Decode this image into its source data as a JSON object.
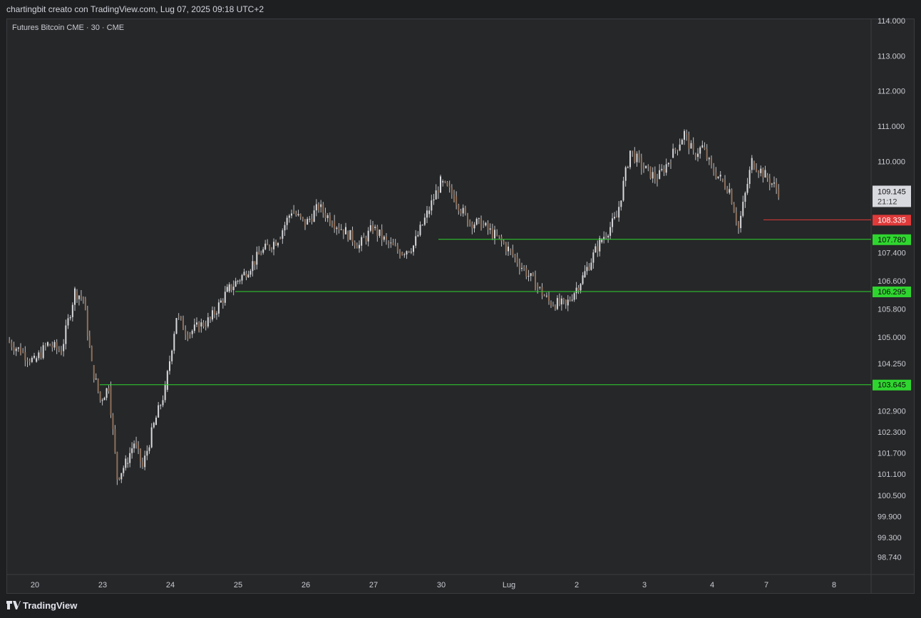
{
  "header": {
    "attribution": "chartingbit creato con TradingView.com, Lug 07, 2025 09:18 UTC+2"
  },
  "symbol": "Futures Bitcoin CME · 30 · CME",
  "footer": {
    "brand": "TradingView",
    "logo_icon": "tradingview-logo-icon"
  },
  "colors": {
    "background": "#262728",
    "candle": "#bfc1c6",
    "support_line": "#2fd52f",
    "resistance_line": "#e03a3a",
    "last_price_tag": "#d9dadf"
  },
  "chart_data": {
    "type": "candlestick",
    "title": "Futures Bitcoin CME · 30 · CME",
    "x_ticks": [
      "20",
      "23",
      "24",
      "25",
      "26",
      "27",
      "30",
      "Lug",
      "2",
      "3",
      "4",
      "7",
      "8"
    ],
    "y_ticks": [
      "114.000",
      "113.000",
      "112.000",
      "111.000",
      "110.000",
      "107.400",
      "106.600",
      "105.800",
      "105.000",
      "104.250",
      "102.900",
      "102.300",
      "101.700",
      "101.100",
      "100.500",
      "99.900",
      "99.300",
      "98.740"
    ],
    "price_path": [
      [
        "20",
        104.9
      ],
      [
        "20",
        104.6
      ],
      [
        "20",
        104.3
      ],
      [
        "20",
        104.8
      ],
      [
        "20",
        104.6
      ],
      [
        "23",
        106.3
      ],
      [
        "23",
        106.1
      ],
      [
        "23",
        104.2
      ],
      [
        "23",
        103.2
      ],
      [
        "23",
        103.6
      ],
      [
        "23",
        101.0
      ],
      [
        "23",
        101.4
      ],
      [
        "23",
        102.0
      ],
      [
        "24",
        101.3
      ],
      [
        "24",
        102.5
      ],
      [
        "24",
        103.5
      ],
      [
        "24",
        105.6
      ],
      [
        "24",
        105.1
      ],
      [
        "24",
        105.3
      ],
      [
        "25",
        105.5
      ],
      [
        "25",
        106.3
      ],
      [
        "25",
        106.8
      ],
      [
        "25",
        107.4
      ],
      [
        "26",
        107.8
      ],
      [
        "26",
        108.6
      ],
      [
        "26",
        108.2
      ],
      [
        "26",
        108.7
      ],
      [
        "26",
        108.3
      ],
      [
        "27",
        108.0
      ],
      [
        "27",
        107.6
      ],
      [
        "27",
        108.1
      ],
      [
        "27",
        107.7
      ],
      [
        "27",
        107.4
      ],
      [
        "30",
        107.6
      ],
      [
        "30",
        108.5
      ],
      [
        "30",
        109.4
      ],
      [
        "30",
        109.0
      ],
      [
        "30",
        108.3
      ],
      [
        "Lug",
        108.2
      ],
      [
        "Lug",
        107.9
      ],
      [
        "Lug",
        107.5
      ],
      [
        "Lug",
        107.0
      ],
      [
        "Lug",
        106.5
      ],
      [
        "2",
        106.0
      ],
      [
        "2",
        105.9
      ],
      [
        "2",
        106.7
      ],
      [
        "2",
        107.7
      ],
      [
        "3",
        108.4
      ],
      [
        "3",
        110.3
      ],
      [
        "3",
        109.8
      ],
      [
        "3",
        109.5
      ],
      [
        "3",
        110.1
      ],
      [
        "4",
        110.8
      ],
      [
        "4",
        110.2
      ],
      [
        "4",
        110.4
      ],
      [
        "4",
        109.8
      ],
      [
        "4",
        109.5
      ],
      [
        "4",
        109.2
      ],
      [
        "7",
        108.1
      ],
      [
        "7",
        110.0
      ],
      [
        "7",
        109.6
      ],
      [
        "7",
        109.145
      ]
    ],
    "levels": [
      {
        "price": "108.335",
        "kind": "resistance",
        "start": "7"
      },
      {
        "price": "107.780",
        "kind": "support",
        "start": "30"
      },
      {
        "price": "106.295",
        "kind": "support",
        "start": "25"
      },
      {
        "price": "103.645",
        "kind": "support",
        "start": "23"
      }
    ],
    "last_price": {
      "value": "109.145",
      "countdown": "21:12"
    },
    "ylim": [
      98.5,
      114.0
    ],
    "grid": false
  }
}
